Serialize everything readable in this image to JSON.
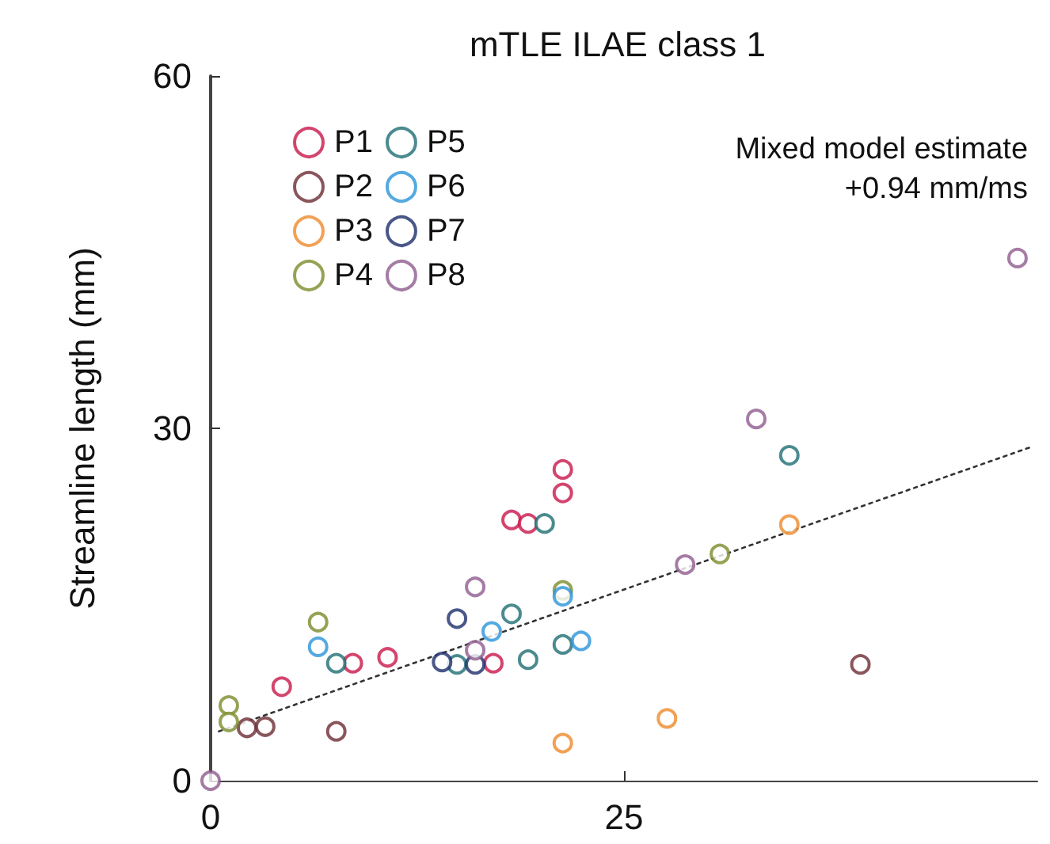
{
  "chart_data": {
    "type": "scatter",
    "title": "mTLE ILAE class 1",
    "ylabel": "Streamline length (mm)",
    "annotations": [
      "Mixed model estimate",
      "+0.94 mm/ms"
    ],
    "xlim": [
      0,
      50
    ],
    "xticks": [
      0,
      25
    ],
    "ylim": [
      0,
      60
    ],
    "yticks": [
      0,
      30,
      60
    ],
    "grid": false,
    "legend": "top left",
    "marker": "circle",
    "series": [
      {
        "name": "P1",
        "color": "#c8174a",
        "x": [
          4.3,
          8.6,
          10.7,
          17.1,
          18.2,
          19.2,
          21.3,
          21.3
        ],
        "values": [
          8.0,
          10.0,
          10.5,
          10.0,
          22.2,
          21.9,
          26.5,
          24.5
        ]
      },
      {
        "name": "P2",
        "color": "#6b2c33",
        "x": [
          2.2,
          3.3,
          7.6,
          39.3
        ],
        "values": [
          4.5,
          4.6,
          4.2,
          9.9
        ]
      },
      {
        "name": "P3",
        "color": "#ee8a2a",
        "x": [
          21.3,
          27.6,
          35.0
        ],
        "values": [
          3.2,
          5.3,
          21.8
        ]
      },
      {
        "name": "P4",
        "color": "#7a8c2a",
        "x": [
          1.1,
          1.1,
          6.5,
          21.3,
          30.8
        ],
        "values": [
          6.4,
          5.0,
          13.5,
          16.2,
          19.3
        ]
      },
      {
        "name": "P5",
        "color": "#1e6e73",
        "x": [
          7.6,
          14.9,
          18.2,
          19.2,
          20.2,
          21.3,
          35.0
        ],
        "values": [
          10.0,
          9.9,
          14.2,
          10.3,
          21.9,
          11.6,
          27.7
        ]
      },
      {
        "name": "P6",
        "color": "#2b93d9",
        "x": [
          6.5,
          17.0,
          21.3,
          22.4
        ],
        "values": [
          11.4,
          12.7,
          15.7,
          11.9
        ]
      },
      {
        "name": "P7",
        "color": "#1b2d6b",
        "x": [
          14.0,
          14.9,
          16.0
        ],
        "values": [
          10.1,
          13.8,
          9.9
        ]
      },
      {
        "name": "P8",
        "color": "#8e5b8e",
        "x": [
          0,
          16.0,
          16.0,
          28.7,
          33.0,
          48.8
        ],
        "values": [
          0,
          16.5,
          11.1,
          18.4,
          30.8,
          44.5
        ]
      },
      {
        "type": "line",
        "color": "#333333",
        "line_style": "dotted",
        "marker": "none",
        "x": [
          0.5,
          49.6
        ],
        "values": [
          4.2,
          28.4
        ]
      }
    ]
  }
}
